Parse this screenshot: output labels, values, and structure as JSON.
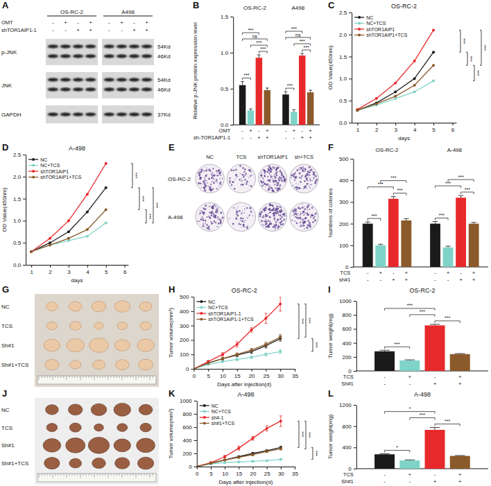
{
  "chart_data": [
    {
      "panel": "B",
      "type": "bar",
      "groups": [
        {
          "name": "OS-RC-2",
          "values": [
            0.55,
            0.2,
            0.93,
            0.48
          ],
          "errors": [
            0.05,
            0.02,
            0.04,
            0.03
          ]
        },
        {
          "name": "A498",
          "values": [
            0.42,
            0.18,
            0.96,
            0.45
          ],
          "errors": [
            0.04,
            0.03,
            0.03,
            0.03
          ]
        }
      ],
      "colors": [
        "#1a1a1a",
        "#7fd3c8",
        "#e8292b",
        "#8b5a2b"
      ],
      "condition_rows": [
        {
          "label": "OMT",
          "signs": [
            "-",
            "+",
            "-",
            "+"
          ]
        },
        {
          "label": "sh-TOR1AIP1-1",
          "signs": [
            "-",
            "-",
            "+",
            "+"
          ]
        }
      ],
      "ylabel": "Relative p-JNK protein expression level",
      "ylim": [
        0,
        1.5
      ],
      "yticks": [
        {
          "value": 0,
          "label": "0.0"
        },
        0.5,
        {
          "value": 1,
          "label": "1.0"
        },
        1.5
      ],
      "significance": [
        {
          "group": 0,
          "pair": [
            0,
            1
          ],
          "label": "***"
        },
        {
          "group": 0,
          "pair": [
            2,
            3
          ],
          "label": "***"
        },
        {
          "group": 0,
          "pair": [
            1,
            3
          ],
          "label": "***"
        },
        {
          "group": 0,
          "pair": [
            0,
            3
          ],
          "label": "ns"
        },
        {
          "group": 0,
          "pair": [
            0,
            2
          ],
          "label": "***"
        },
        {
          "group": 1,
          "pair": [
            0,
            1
          ],
          "label": "***"
        },
        {
          "group": 1,
          "pair": [
            2,
            3
          ],
          "label": "***"
        },
        {
          "group": 1,
          "pair": [
            1,
            3
          ],
          "label": "***"
        },
        {
          "group": 1,
          "pair": [
            0,
            3
          ],
          "label": "ns"
        },
        {
          "group": 1,
          "pair": [
            0,
            2
          ],
          "label": "***"
        }
      ]
    },
    {
      "panel": "C",
      "type": "line",
      "title": "OS-RC-2",
      "xlabel": "days",
      "ylabel": "OD Value(450nm)",
      "x": [
        1,
        2,
        3,
        4,
        5
      ],
      "xlim": [
        0.7,
        6.2
      ],
      "xticks": [
        1,
        2,
        3,
        4,
        5,
        6
      ],
      "ylim": [
        0,
        2.5
      ],
      "yticks": [
        {
          "value": 0,
          "label": "0.0"
        },
        0.5,
        {
          "value": 1,
          "label": "1.0"
        },
        1.5,
        {
          "value": 2,
          "label": "2.0"
        },
        2.5
      ],
      "legend": "upper left",
      "marker": "circle",
      "series": [
        {
          "name": "NC",
          "color": "#1a1a1a",
          "values": [
            0.28,
            0.45,
            0.7,
            1.0,
            1.6
          ]
        },
        {
          "name": "NC+TCS",
          "color": "#7fd3c8",
          "values": [
            0.28,
            0.4,
            0.55,
            0.7,
            0.95
          ]
        },
        {
          "name": "shTOR1AIP1",
          "color": "#e8292b",
          "values": [
            0.3,
            0.55,
            0.9,
            1.4,
            2.1
          ]
        },
        {
          "name": "shTOR1AIP1+TCS",
          "color": "#8b5a2b",
          "values": [
            0.28,
            0.43,
            0.6,
            0.85,
            1.3
          ]
        }
      ],
      "significance": [
        {
          "pair": [
            2,
            0
          ],
          "label": "***"
        },
        {
          "pair": [
            0,
            3
          ],
          "label": "***"
        },
        {
          "pair": [
            3,
            1
          ],
          "label": "***"
        },
        {
          "pair": [
            2,
            3
          ],
          "label": "***"
        }
      ]
    },
    {
      "panel": "D",
      "type": "line",
      "title": "A-498",
      "xlabel": "days",
      "ylabel": "OD Value(450nm)",
      "x": [
        1,
        2,
        3,
        4,
        5
      ],
      "xlim": [
        0.7,
        6.2
      ],
      "xticks": [
        1,
        2,
        3,
        4,
        5,
        6
      ],
      "ylim": [
        0,
        2.5
      ],
      "yticks": [
        {
          "value": 0,
          "label": "0.0"
        },
        0.5,
        {
          "value": 1,
          "label": "1.0"
        },
        1.5,
        {
          "value": 2,
          "label": "2.0"
        },
        2.5
      ],
      "legend": "upper left",
      "marker": "circle",
      "series": [
        {
          "name": "NC",
          "color": "#1a1a1a",
          "values": [
            0.3,
            0.5,
            0.75,
            1.2,
            1.75
          ]
        },
        {
          "name": "NC+TCS",
          "color": "#7fd3c8",
          "values": [
            0.3,
            0.45,
            0.55,
            0.65,
            0.95
          ]
        },
        {
          "name": "shTOR1AIP1",
          "color": "#e8292b",
          "values": [
            0.3,
            0.6,
            1.0,
            1.6,
            2.3
          ]
        },
        {
          "name": "shTOR1AIP1+TCS",
          "color": "#8b5a2b",
          "values": [
            0.3,
            0.45,
            0.6,
            0.8,
            1.25
          ]
        }
      ],
      "significance": [
        {
          "pair": [
            2,
            0
          ],
          "label": "***"
        },
        {
          "pair": [
            0,
            3
          ],
          "label": "***"
        },
        {
          "pair": [
            3,
            1
          ],
          "label": "***"
        },
        {
          "pair": [
            0,
            1
          ],
          "label": "***"
        }
      ]
    },
    {
      "panel": "F",
      "type": "bar",
      "groups": [
        {
          "name": "OS-RC-2",
          "values": [
            200,
            100,
            315,
            215
          ],
          "errors": [
            8,
            5,
            10,
            8
          ]
        },
        {
          "name": "A-498",
          "values": [
            200,
            90,
            320,
            200
          ],
          "errors": [
            10,
            6,
            10,
            6
          ]
        }
      ],
      "colors": [
        "#1a1a1a",
        "#7fd3c8",
        "#e8292b",
        "#8b5a2b"
      ],
      "condition_rows": [
        {
          "label": "TCS",
          "signs": [
            "-",
            "+",
            "-",
            "+"
          ]
        },
        {
          "label": "sh#1",
          "signs": [
            "-",
            "-",
            "+",
            "+"
          ]
        }
      ],
      "ylabel": "Numbers of colones",
      "ylim": [
        0,
        500
      ],
      "yticks": [
        0,
        100,
        200,
        300,
        400,
        500
      ],
      "significance": [
        {
          "group": 0,
          "pair": [
            0,
            1
          ],
          "label": "***"
        },
        {
          "group": 0,
          "pair": [
            2,
            3
          ],
          "label": "***"
        },
        {
          "group": 0,
          "pair": [
            0,
            2
          ],
          "label": "***"
        },
        {
          "group": 0,
          "pair": [
            1,
            3
          ],
          "label": "***"
        },
        {
          "group": 1,
          "pair": [
            0,
            1
          ],
          "label": "***"
        },
        {
          "group": 1,
          "pair": [
            2,
            3
          ],
          "label": "***"
        },
        {
          "group": 1,
          "pair": [
            0,
            2
          ],
          "label": "***"
        },
        {
          "group": 1,
          "pair": [
            1,
            3
          ],
          "label": "***"
        }
      ]
    },
    {
      "panel": "H",
      "type": "line",
      "title": "OS-RC-2",
      "xlabel": "Days after injection(d)",
      "ylabel": "Tumor volume(mm³)",
      "x": [
        0,
        5,
        10,
        15,
        20,
        25,
        30
      ],
      "xlim": [
        0,
        35
      ],
      "xticks": [
        0,
        5,
        10,
        15,
        20,
        25,
        30,
        35
      ],
      "ylim": [
        0,
        500
      ],
      "yticks": [
        0,
        100,
        200,
        300,
        400,
        500
      ],
      "legend": "upper left",
      "marker": "circle",
      "series": [
        {
          "name": "NC",
          "color": "#1a1a1a",
          "values": [
            0,
            40,
            70,
            95,
            120,
            160,
            210
          ],
          "errors": [
            0,
            5,
            8,
            10,
            12,
            15,
            18
          ]
        },
        {
          "name": "NC+TCS",
          "color": "#7fd3c8",
          "values": [
            0,
            30,
            50,
            65,
            80,
            100,
            120
          ],
          "errors": [
            0,
            4,
            6,
            8,
            8,
            10,
            12
          ]
        },
        {
          "name": "shTOR1AIP1-1",
          "color": "#e8292b",
          "values": [
            0,
            50,
            100,
            170,
            270,
            350,
            450
          ],
          "errors": [
            0,
            8,
            12,
            18,
            15,
            35,
            50
          ]
        },
        {
          "name": "shTOR1AIP1-1+TCS",
          "color": "#8b5a2b",
          "values": [
            0,
            40,
            70,
            100,
            130,
            170,
            220
          ],
          "errors": [
            0,
            5,
            8,
            10,
            12,
            15,
            18
          ]
        }
      ],
      "significance": [
        {
          "pair": [
            2,
            0
          ],
          "label": "***"
        },
        {
          "pair": [
            2,
            3
          ],
          "label": "***"
        },
        {
          "pair": [
            0,
            1
          ],
          "label": "***"
        }
      ]
    },
    {
      "panel": "I",
      "type": "bar",
      "title": "OS-RC-2",
      "groups": [
        {
          "values": [
            280,
            150,
            650,
            240
          ],
          "errors": [
            15,
            8,
            15,
            8
          ]
        }
      ],
      "colors": [
        "#1a1a1a",
        "#7fd3c8",
        "#e8292b",
        "#8b5a2b"
      ],
      "condition_rows": [
        {
          "label": "TCS",
          "signs": [
            "-",
            "+",
            "-",
            "+"
          ]
        },
        {
          "label": "Sh#1",
          "signs": [
            "-",
            "-",
            "+",
            "+"
          ]
        }
      ],
      "ylabel": "Tumor weight(mg)",
      "ylim": [
        0,
        1000
      ],
      "yticks": [
        0,
        200,
        400,
        600,
        800,
        1000
      ],
      "significance": [
        {
          "pair": [
            0,
            1
          ],
          "label": "***"
        },
        {
          "pair": [
            2,
            3
          ],
          "label": "***"
        },
        {
          "pair": [
            1,
            2
          ],
          "label": "***"
        },
        {
          "pair": [
            0,
            2
          ],
          "label": "***"
        }
      ]
    },
    {
      "panel": "K",
      "type": "line",
      "title": "A-498",
      "xlabel": "Days after injection(d)",
      "ylabel": "Tumor volume(mm³)",
      "x": [
        0,
        5,
        10,
        15,
        20,
        25,
        30
      ],
      "xlim": [
        0,
        35
      ],
      "xticks": [
        0,
        5,
        10,
        15,
        20,
        25,
        30,
        35
      ],
      "ylim": [
        0,
        1000
      ],
      "yticks": [
        0,
        200,
        400,
        600,
        800,
        1000
      ],
      "legend": "upper left",
      "marker": "circle",
      "series": [
        {
          "name": "NC",
          "color": "#1a1a1a",
          "values": [
            0,
            50,
            100,
            150,
            200,
            240,
            290
          ],
          "errors": [
            0,
            6,
            10,
            12,
            15,
            15,
            18
          ]
        },
        {
          "name": "NC+TCS",
          "color": "#7fd3c8",
          "values": [
            0,
            40,
            60,
            70,
            80,
            90,
            110
          ],
          "errors": [
            0,
            5,
            6,
            8,
            8,
            10,
            12
          ]
        },
        {
          "name": "sh#-1",
          "color": "#e8292b",
          "values": [
            0,
            60,
            150,
            280,
            430,
            580,
            690
          ],
          "errors": [
            0,
            10,
            20,
            30,
            30,
            40,
            80
          ]
        },
        {
          "name": "sh#1+TCS",
          "color": "#8b5a2b",
          "values": [
            0,
            50,
            100,
            140,
            180,
            230,
            270
          ],
          "errors": [
            0,
            6,
            10,
            12,
            15,
            15,
            18
          ]
        }
      ],
      "significance": [
        {
          "pair": [
            2,
            0
          ],
          "label": "***"
        },
        {
          "pair": [
            2,
            3
          ],
          "label": "***"
        },
        {
          "pair": [
            0,
            1
          ],
          "label": "***"
        }
      ]
    },
    {
      "panel": "L",
      "type": "bar",
      "title": "A-498",
      "groups": [
        {
          "values": [
            270,
            155,
            730,
            240
          ],
          "errors": [
            10,
            10,
            45,
            8
          ]
        }
      ],
      "colors": [
        "#1a1a1a",
        "#7fd3c8",
        "#e8292b",
        "#8b5a2b"
      ],
      "condition_rows": [
        {
          "label": "TCS",
          "signs": [
            "-",
            "+",
            "-",
            "+"
          ]
        },
        {
          "label": "Sh#1",
          "signs": [
            "-",
            "-",
            "+",
            "+"
          ]
        }
      ],
      "ylabel": "Tumor weight(mg)",
      "ylim": [
        0,
        1200
      ],
      "yticks": [
        0,
        400,
        800,
        1200
      ],
      "significance": [
        {
          "pair": [
            0,
            1
          ],
          "label": "*"
        },
        {
          "pair": [
            2,
            3
          ],
          "label": "***"
        },
        {
          "pair": [
            1,
            2
          ],
          "label": "***"
        },
        {
          "pair": [
            0,
            2
          ],
          "label": "*"
        }
      ]
    }
  ],
  "figures": [
    {
      "panel": "A",
      "groups": [
        "OS-RC-2",
        "A498"
      ],
      "condition_rows": [
        {
          "label": "OMT",
          "signs": [
            "-",
            "+",
            "-",
            "+"
          ]
        },
        {
          "label": "shTOR1AIP1-1",
          "signs": [
            "-",
            "-",
            "+",
            "+"
          ]
        }
      ],
      "bands": [
        {
          "name": "p-JNK",
          "sizes": [
            "54Kd",
            "46Kd"
          ]
        },
        {
          "name": "JNK",
          "sizes": [
            "54Kd",
            "46Kd"
          ]
        },
        {
          "name": "GAPDH",
          "sizes": [
            "37Kd"
          ]
        }
      ]
    },
    {
      "panel": "E",
      "columns": [
        "NC",
        "TCS",
        "shTOR1AIP1",
        "sh+TCS"
      ],
      "rows": [
        "OS-RC-2",
        "A-498"
      ]
    },
    {
      "panel": "G",
      "rows": [
        "NC",
        "TCS",
        "Sh#1",
        "Sh#1+TCS"
      ]
    },
    {
      "panel": "J",
      "rows": [
        "NC",
        "TCS",
        "Sh#1",
        "Sh#1+TCS"
      ]
    }
  ]
}
